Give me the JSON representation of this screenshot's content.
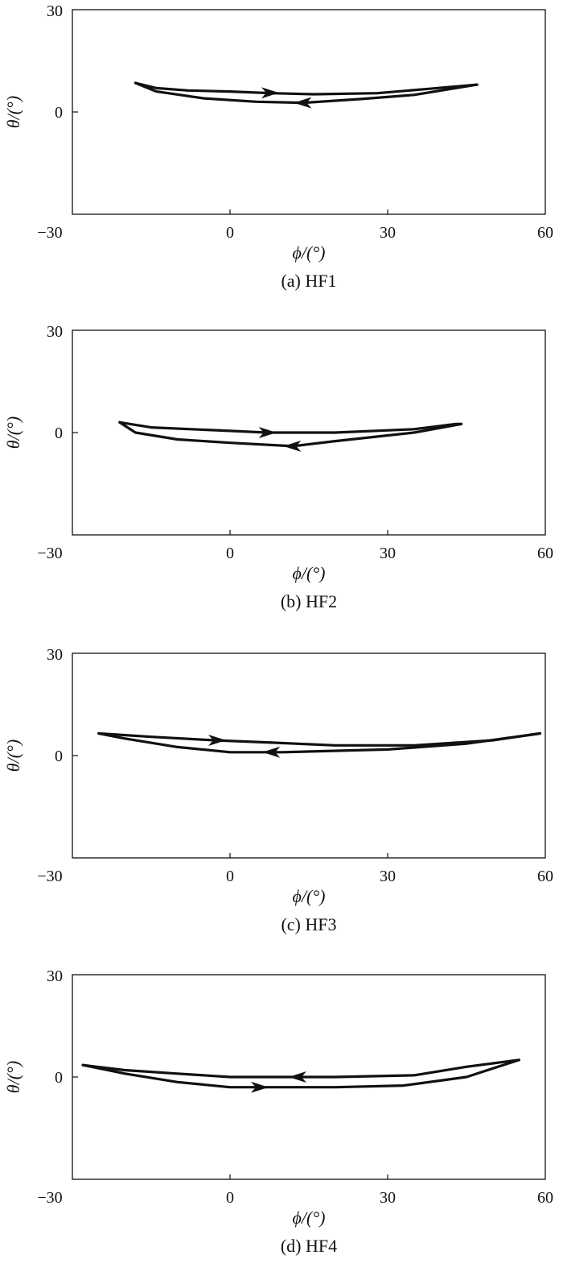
{
  "chart_data": [
    {
      "type": "line",
      "caption": "(a) HF1",
      "xlabel": "ϕ/(°)",
      "ylabel": "θ/(°)",
      "xlim": [
        -30,
        60
      ],
      "ylim": [
        -30,
        30
      ],
      "xticks": [
        "−30",
        "0",
        "30",
        "60"
      ],
      "yticks": [
        "30",
        "0"
      ],
      "grid": false,
      "series": [
        {
          "branch": "upper",
          "x": [
            -18,
            -14,
            -8,
            0,
            8,
            16,
            28,
            38,
            47
          ],
          "y": [
            8.5,
            7,
            6.3,
            6,
            5.5,
            5.2,
            5.5,
            6.8,
            8
          ]
        },
        {
          "branch": "lower",
          "x": [
            47,
            35,
            25,
            14,
            5,
            -5,
            -14,
            -18
          ],
          "y": [
            8,
            5,
            3.8,
            2.7,
            3,
            4,
            6,
            8.5
          ]
        }
      ],
      "arrows": [
        {
          "x": 7.5,
          "y": 5.6,
          "direction": "right"
        },
        {
          "x": 14,
          "y": 2.7,
          "direction": "left"
        }
      ]
    },
    {
      "type": "line",
      "caption": "(b) HF2",
      "xlabel": "ϕ/(°)",
      "ylabel": "θ/(°)",
      "xlim": [
        -30,
        60
      ],
      "ylim": [
        -30,
        30
      ],
      "xticks": [
        "−30",
        "0",
        "30",
        "60"
      ],
      "yticks": [
        "30",
        "0"
      ],
      "grid": false,
      "series": [
        {
          "branch": "upper",
          "x": [
            -21,
            -15,
            0,
            7,
            20,
            35,
            43,
            44
          ],
          "y": [
            3,
            1.5,
            0.5,
            0,
            0,
            1,
            2.5,
            2.5
          ]
        },
        {
          "branch": "lower",
          "x": [
            44,
            35,
            20,
            12,
            0,
            -10,
            -18,
            -21
          ],
          "y": [
            2.5,
            0,
            -2.5,
            -4,
            -3,
            -2,
            0,
            3
          ]
        }
      ],
      "arrows": [
        {
          "x": 7,
          "y": 0,
          "direction": "right"
        },
        {
          "x": 12,
          "y": -4,
          "direction": "left"
        }
      ]
    },
    {
      "type": "line",
      "caption": "(c) HF3",
      "xlabel": "ϕ/(°)",
      "ylabel": "θ/(°)",
      "xlim": [
        -30,
        60
      ],
      "ylim": [
        -30,
        30
      ],
      "xticks": [
        "−30",
        "0",
        "30",
        "60"
      ],
      "yticks": [
        "30",
        "0"
      ],
      "grid": false,
      "series": [
        {
          "branch": "upper",
          "x": [
            -25,
            -15,
            -3,
            8,
            20,
            35,
            50,
            59
          ],
          "y": [
            6.5,
            5.5,
            4.5,
            3.8,
            3,
            3,
            4.5,
            6.5
          ]
        },
        {
          "branch": "lower",
          "x": [
            59,
            45,
            30,
            10,
            0,
            -10,
            -20,
            -25
          ],
          "y": [
            6.5,
            3.5,
            1.8,
            1,
            1,
            2.5,
            5,
            6.5
          ]
        }
      ],
      "arrows": [
        {
          "x": -2.6,
          "y": 4.5,
          "direction": "right"
        },
        {
          "x": 8,
          "y": 1,
          "direction": "left"
        }
      ]
    },
    {
      "type": "line",
      "caption": "(d) HF4",
      "xlabel": "ϕ/(°)",
      "ylabel": "θ/(°)",
      "xlim": [
        -30,
        60
      ],
      "ylim": [
        -30,
        30
      ],
      "xticks": [
        "−30",
        "0",
        "30",
        "60"
      ],
      "yticks": [
        "30",
        "0"
      ],
      "grid": false,
      "series": [
        {
          "branch": "upper",
          "x": [
            55,
            45,
            35,
            20,
            13,
            0,
            -10,
            -20,
            -28
          ],
          "y": [
            5,
            3,
            0.5,
            0,
            0,
            0,
            1,
            2,
            3.5
          ]
        },
        {
          "branch": "lower",
          "x": [
            -28,
            -20,
            -10,
            0,
            5,
            20,
            33,
            45,
            55
          ],
          "y": [
            3.5,
            1,
            -1.5,
            -3,
            -3,
            -3,
            -2.5,
            0,
            5
          ]
        }
      ],
      "arrows": [
        {
          "x": 13,
          "y": 0,
          "direction": "left"
        },
        {
          "x": 5.5,
          "y": -3,
          "direction": "right"
        }
      ]
    }
  ]
}
